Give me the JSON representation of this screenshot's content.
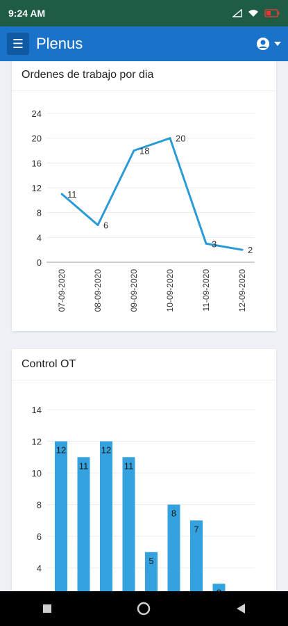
{
  "status_bar": {
    "time": "9:24 AM"
  },
  "app_bar": {
    "title": "Plenus"
  },
  "charts": {
    "line_title": "Ordenes de trabajo por dia",
    "bar_title": "Control OT"
  },
  "chart_data": [
    {
      "type": "line",
      "title": "Ordenes de trabajo por dia",
      "categories": [
        "07-09-2020",
        "08-09-2020",
        "09-09-2020",
        "10-09-2020",
        "11-09-2020",
        "12-09-2020"
      ],
      "values": [
        11,
        6,
        18,
        20,
        3,
        2
      ],
      "y_ticks": [
        0,
        4,
        8,
        12,
        16,
        20,
        24
      ],
      "ylim": [
        0,
        24
      ],
      "grid": true,
      "color": "#2a9bd6"
    },
    {
      "type": "bar",
      "title": "Control OT",
      "values": [
        12,
        11,
        12,
        11,
        5,
        8,
        7,
        3
      ],
      "y_ticks": [
        4,
        6,
        8,
        10,
        12,
        14
      ],
      "grid": true,
      "color": "#35a2e0"
    }
  ]
}
